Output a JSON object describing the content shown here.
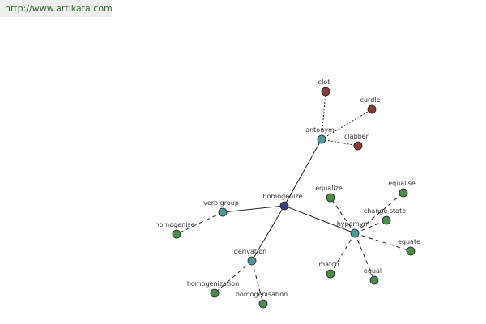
{
  "header": {
    "url": "http://www.artikata.com"
  },
  "nodes": [
    {
      "label": "homogenize"
    },
    {
      "label": "antonym"
    },
    {
      "label": "clot"
    },
    {
      "label": "curdle"
    },
    {
      "label": "clabber"
    },
    {
      "label": "verb group"
    },
    {
      "label": "homogenise"
    },
    {
      "label": "derivation"
    },
    {
      "label": "homogenization"
    },
    {
      "label": "homogenisation"
    },
    {
      "label": "hypernym"
    },
    {
      "label": "equalize"
    },
    {
      "label": "equalise"
    },
    {
      "label": "change state"
    },
    {
      "label": "equate"
    },
    {
      "label": "equal"
    },
    {
      "label": "match"
    }
  ]
}
